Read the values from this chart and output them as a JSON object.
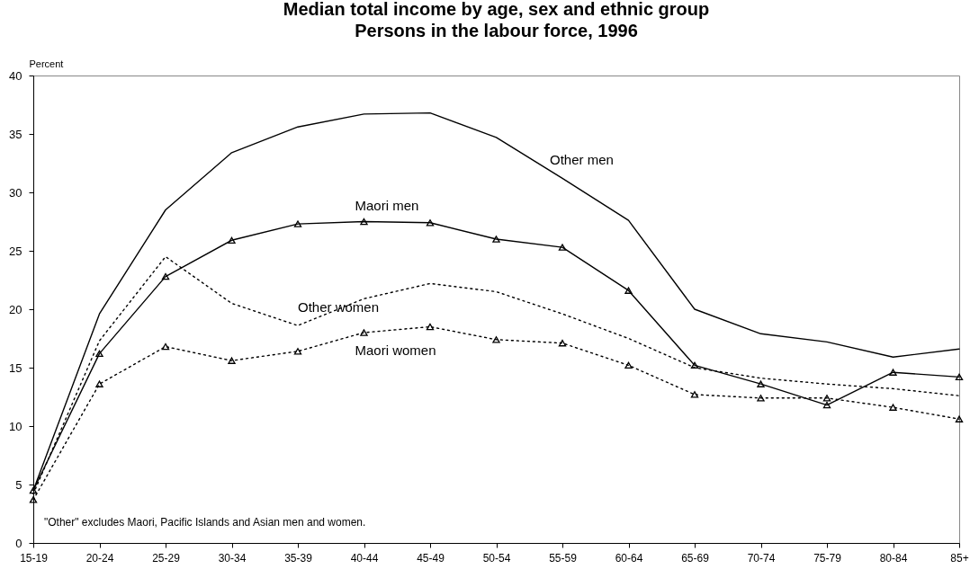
{
  "chart_data": {
    "type": "line",
    "title": "Median total income by age, sex and ethnic group",
    "subtitle": "Persons in the labour force, 1996",
    "ylabel": "Percent",
    "categories": [
      "15-19",
      "20-24",
      "25-29",
      "30-34",
      "35-39",
      "40-44",
      "45-49",
      "50-54",
      "55-59",
      "60-64",
      "65-69",
      "70-74",
      "75-79",
      "80-84",
      "85+"
    ],
    "series": [
      {
        "name": "Other men",
        "color": "#000000",
        "line_style": "solid",
        "marker": "none",
        "values": [
          4.5,
          19.6,
          28.5,
          33.4,
          35.6,
          36.7,
          36.8,
          34.7,
          31.2,
          27.6,
          20.0,
          17.9,
          17.2,
          15.9,
          16.6
        ]
      },
      {
        "name": "Maori men",
        "color": "#000000",
        "line_style": "solid",
        "marker": "triangle",
        "values": [
          4.5,
          16.2,
          22.8,
          25.9,
          27.3,
          27.5,
          27.4,
          26.0,
          25.3,
          21.6,
          15.2,
          13.6,
          11.8,
          14.6,
          14.2
        ]
      },
      {
        "name": "Other women",
        "color": "#000000",
        "line_style": "dotted",
        "marker": "none",
        "values": [
          4.2,
          17.3,
          24.5,
          20.5,
          18.6,
          20.9,
          22.2,
          21.5,
          19.6,
          17.5,
          15.0,
          14.1,
          13.6,
          13.2,
          12.6
        ]
      },
      {
        "name": "Maori women",
        "color": "#000000",
        "line_style": "dotted",
        "marker": "triangle",
        "values": [
          3.7,
          13.6,
          16.8,
          15.6,
          16.4,
          18.0,
          18.5,
          17.4,
          17.1,
          15.2,
          12.7,
          12.4,
          12.4,
          11.6,
          10.6
        ]
      }
    ],
    "ylim": [
      0,
      40
    ],
    "yticks": [
      0,
      5,
      10,
      15,
      20,
      25,
      30,
      35,
      40
    ],
    "grid": false,
    "annotations": [
      "\"Other\" excludes Maori, Pacific Islands and Asian men and women."
    ]
  }
}
